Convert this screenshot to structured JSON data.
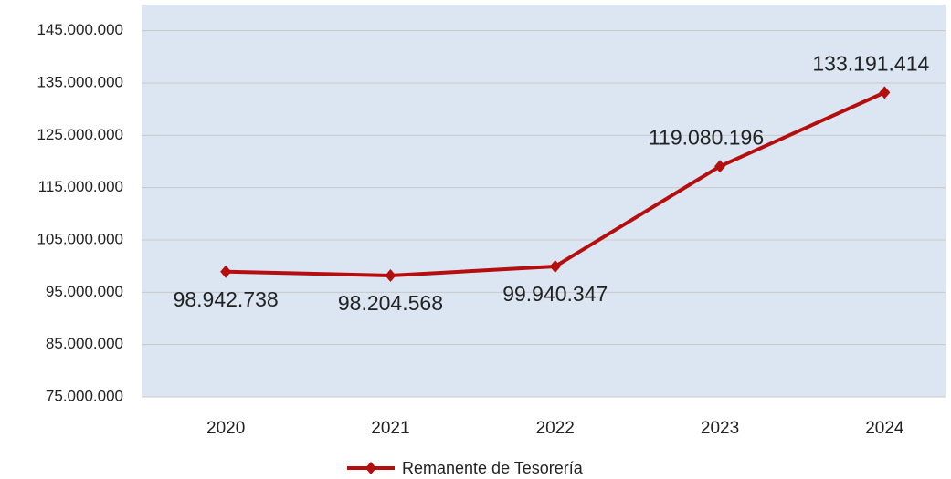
{
  "chart_data": {
    "type": "line",
    "categories": [
      "2020",
      "2021",
      "2022",
      "2023",
      "2024"
    ],
    "series": [
      {
        "name": "Remanente de Tesorería",
        "color": "#b50e0e",
        "values": [
          98942738,
          98204568,
          99940347,
          119080196,
          133191414
        ],
        "value_labels": [
          "98.942.738",
          "98.204.568",
          "99.940.347",
          "119.080.196",
          "133.191.414"
        ]
      }
    ],
    "ylim": [
      75000000,
      150000000
    ],
    "yticks": [
      {
        "value": 75000000,
        "label": "75.000.000"
      },
      {
        "value": 85000000,
        "label": "85.000.000"
      },
      {
        "value": 95000000,
        "label": "95.000.000"
      },
      {
        "value": 105000000,
        "label": "105.000.000"
      },
      {
        "value": 115000000,
        "label": "115.000.000"
      },
      {
        "value": 125000000,
        "label": "125.000.000"
      },
      {
        "value": 135000000,
        "label": "135.000.000"
      },
      {
        "value": 145000000,
        "label": "145.000.000"
      }
    ],
    "grid": true,
    "legend": "bottom"
  }
}
